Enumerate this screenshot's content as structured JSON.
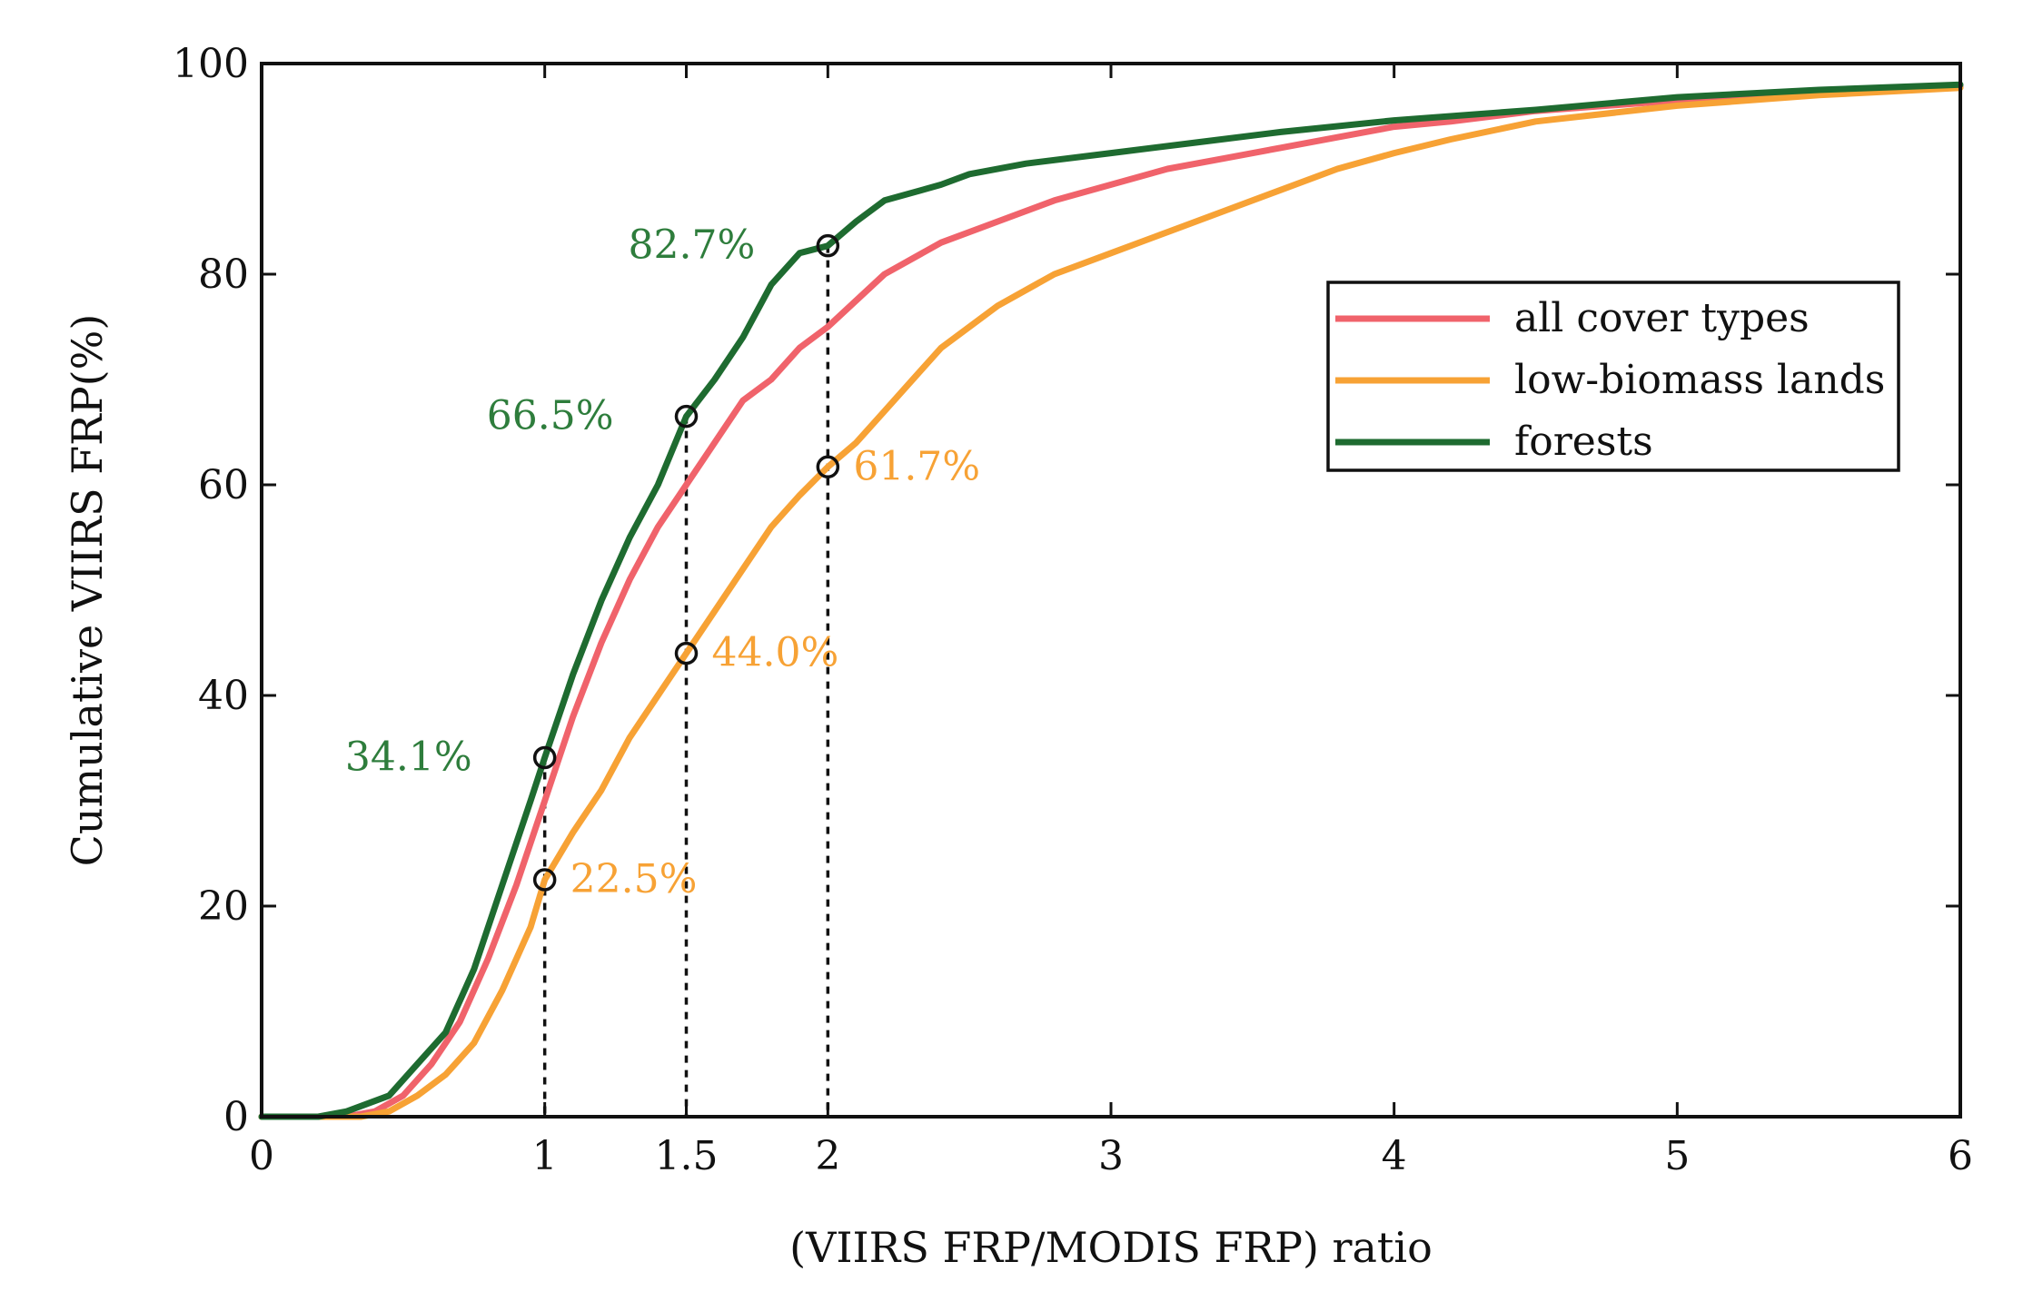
{
  "chart_data": {
    "type": "line",
    "title": "",
    "xlabel": "(VIIRS FRP/MODIS FRP) ratio",
    "ylabel": "Cumulative VIIRS FRP(%)",
    "xlim": [
      0,
      6
    ],
    "ylim": [
      0,
      100
    ],
    "x_ticks": [
      0,
      1,
      1.5,
      2,
      3,
      4,
      5,
      6
    ],
    "x_tick_labels": [
      "0",
      "1",
      "1.5",
      "2",
      "3",
      "4",
      "5",
      "6"
    ],
    "y_ticks": [
      0,
      20,
      40,
      60,
      80,
      100
    ],
    "y_tick_labels": [
      "0",
      "20",
      "40",
      "60",
      "80",
      "100"
    ],
    "grid": false,
    "legend_position": "top-right",
    "series": [
      {
        "name": "all cover types",
        "color": "#f0636b",
        "points": [
          [
            0,
            0
          ],
          [
            0.3,
            0
          ],
          [
            0.4,
            0.5
          ],
          [
            0.5,
            2
          ],
          [
            0.6,
            5
          ],
          [
            0.7,
            9
          ],
          [
            0.8,
            15
          ],
          [
            0.9,
            22
          ],
          [
            1.0,
            30
          ],
          [
            1.1,
            38
          ],
          [
            1.2,
            45
          ],
          [
            1.3,
            51
          ],
          [
            1.4,
            56
          ],
          [
            1.5,
            60
          ],
          [
            1.6,
            64
          ],
          [
            1.7,
            68
          ],
          [
            1.8,
            70
          ],
          [
            1.9,
            73
          ],
          [
            2.0,
            75
          ],
          [
            2.2,
            80
          ],
          [
            2.4,
            83
          ],
          [
            2.6,
            85
          ],
          [
            2.8,
            87
          ],
          [
            3.0,
            88.5
          ],
          [
            3.2,
            90
          ],
          [
            3.4,
            91
          ],
          [
            3.6,
            92
          ],
          [
            3.8,
            93
          ],
          [
            4.0,
            94
          ],
          [
            4.2,
            94.5
          ],
          [
            4.5,
            95.5
          ],
          [
            5.0,
            96.5
          ],
          [
            5.5,
            97.3
          ],
          [
            6.0,
            97.8
          ]
        ]
      },
      {
        "name": "low-biomass lands",
        "color": "#f7a235",
        "points": [
          [
            0,
            0
          ],
          [
            0.35,
            0
          ],
          [
            0.45,
            0.5
          ],
          [
            0.55,
            2
          ],
          [
            0.65,
            4
          ],
          [
            0.75,
            7
          ],
          [
            0.85,
            12
          ],
          [
            0.95,
            18
          ],
          [
            1.0,
            22.5
          ],
          [
            1.1,
            27
          ],
          [
            1.2,
            31
          ],
          [
            1.3,
            36
          ],
          [
            1.4,
            40
          ],
          [
            1.5,
            44
          ],
          [
            1.6,
            48
          ],
          [
            1.7,
            52
          ],
          [
            1.8,
            56
          ],
          [
            1.9,
            59
          ],
          [
            2.0,
            61.7
          ],
          [
            2.1,
            64
          ],
          [
            2.2,
            67
          ],
          [
            2.3,
            70
          ],
          [
            2.4,
            73
          ],
          [
            2.6,
            77
          ],
          [
            2.8,
            80
          ],
          [
            3.0,
            82
          ],
          [
            3.2,
            84
          ],
          [
            3.4,
            86
          ],
          [
            3.6,
            88
          ],
          [
            3.8,
            90
          ],
          [
            4.0,
            91.5
          ],
          [
            4.2,
            92.8
          ],
          [
            4.5,
            94.5
          ],
          [
            5.0,
            96
          ],
          [
            5.5,
            97
          ],
          [
            6.0,
            97.7
          ]
        ]
      },
      {
        "name": "forests",
        "color": "#1e6b30",
        "points": [
          [
            0,
            0
          ],
          [
            0.2,
            0
          ],
          [
            0.3,
            0.5
          ],
          [
            0.45,
            2
          ],
          [
            0.55,
            5
          ],
          [
            0.65,
            8
          ],
          [
            0.75,
            14
          ],
          [
            0.85,
            22
          ],
          [
            0.95,
            30
          ],
          [
            1.0,
            34.1
          ],
          [
            1.1,
            42
          ],
          [
            1.2,
            49
          ],
          [
            1.3,
            55
          ],
          [
            1.4,
            60
          ],
          [
            1.5,
            66.5
          ],
          [
            1.6,
            70
          ],
          [
            1.7,
            74
          ],
          [
            1.8,
            79
          ],
          [
            1.9,
            82
          ],
          [
            2.0,
            82.7
          ],
          [
            2.1,
            85
          ],
          [
            2.2,
            87
          ],
          [
            2.4,
            88.5
          ],
          [
            2.5,
            89.5
          ],
          [
            2.7,
            90.5
          ],
          [
            3.0,
            91.5
          ],
          [
            3.3,
            92.5
          ],
          [
            3.6,
            93.5
          ],
          [
            4.0,
            94.6
          ],
          [
            4.5,
            95.6
          ],
          [
            5.0,
            96.8
          ],
          [
            5.5,
            97.5
          ],
          [
            6.0,
            98
          ]
        ]
      }
    ],
    "guide_lines": [
      1,
      1.5,
      2
    ],
    "annotations": [
      {
        "x": 1.0,
        "y": 34.1,
        "label": "34.1%",
        "series": "forests",
        "color": "#2e7d3c",
        "side": "left",
        "dy": 0
      },
      {
        "x": 1.5,
        "y": 66.5,
        "label": "66.5%",
        "series": "forests",
        "color": "#2e7d3c",
        "side": "left",
        "dy": 0
      },
      {
        "x": 2.0,
        "y": 82.7,
        "label": "82.7%",
        "series": "forests",
        "color": "#2e7d3c",
        "side": "left",
        "dy": 0
      },
      {
        "x": 1.0,
        "y": 22.5,
        "label": "22.5%",
        "series": "low-biomass lands",
        "color": "#f7a235",
        "side": "right",
        "dy": 0
      },
      {
        "x": 1.5,
        "y": 44.0,
        "label": "44.0%",
        "series": "low-biomass lands",
        "color": "#f7a235",
        "side": "right",
        "dy": 0
      },
      {
        "x": 2.0,
        "y": 61.7,
        "label": "61.7%",
        "series": "low-biomass lands",
        "color": "#f7a235",
        "side": "right",
        "dy": 0
      }
    ]
  }
}
